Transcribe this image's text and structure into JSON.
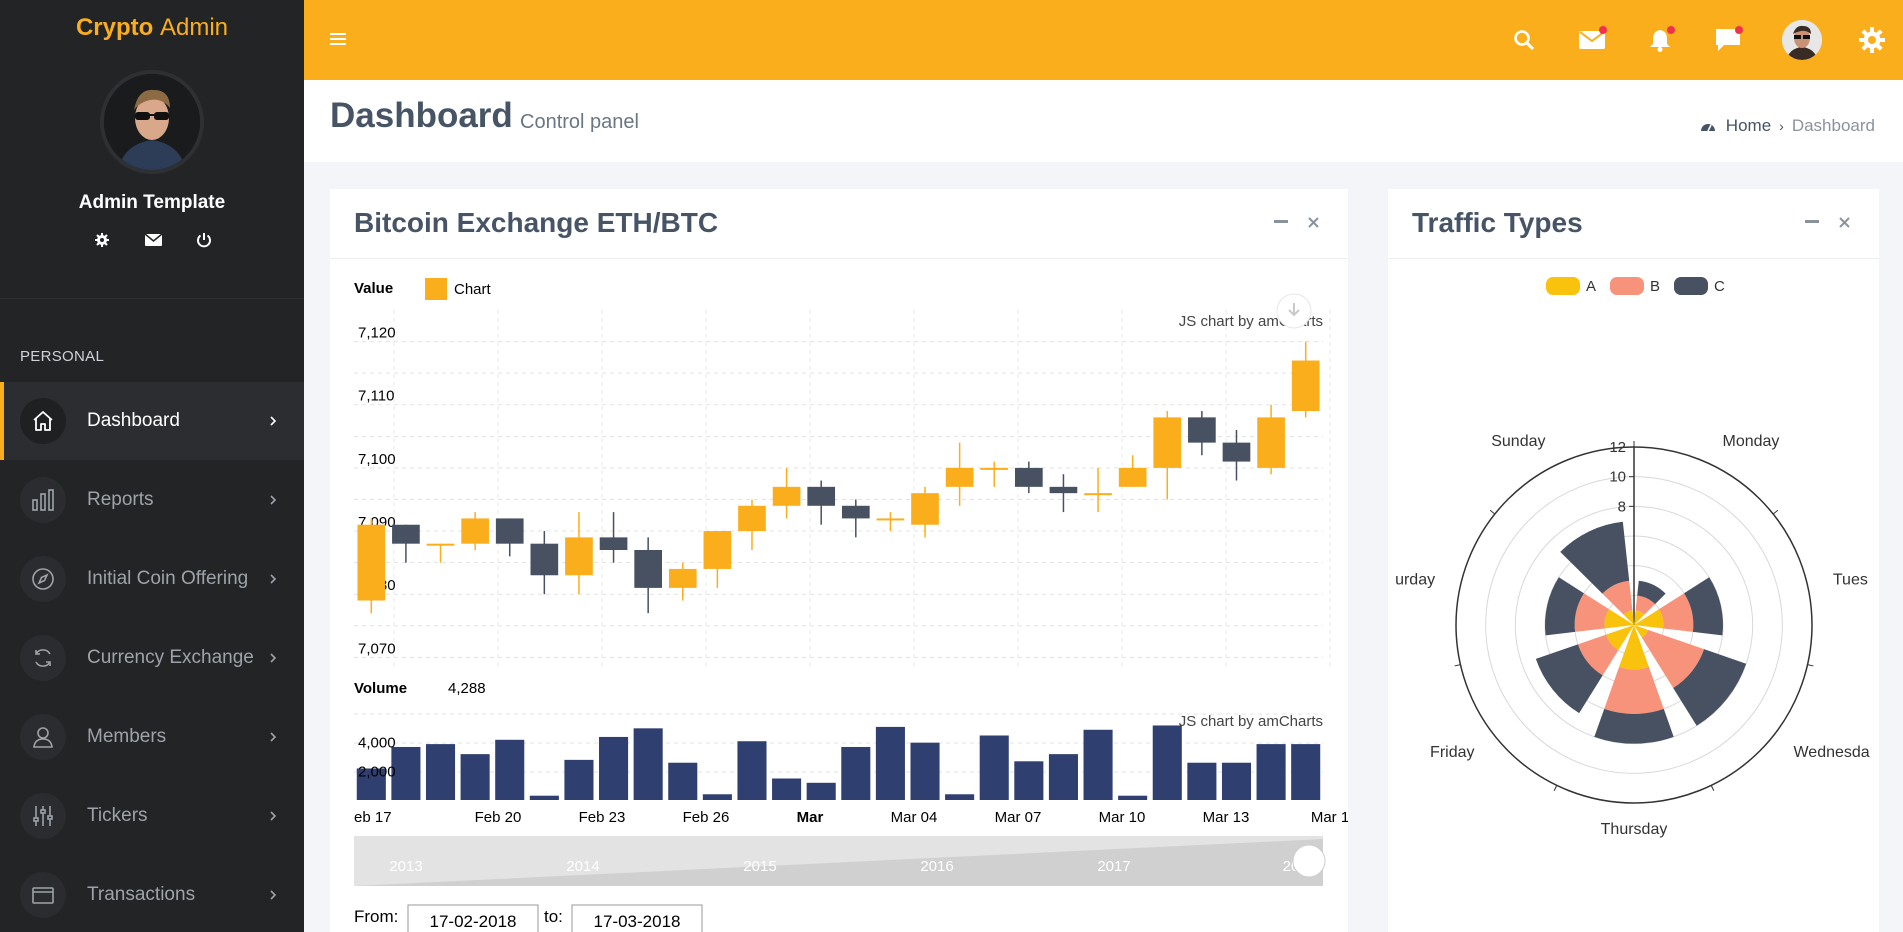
{
  "brand": {
    "bold": "Crypto",
    "thin": "Admin"
  },
  "user": {
    "name": "Admin Template"
  },
  "sidebar": {
    "section": "PERSONAL",
    "items": [
      {
        "label": "Dashboard",
        "icon": "home-icon"
      },
      {
        "label": "Reports",
        "icon": "bar-chart-icon"
      },
      {
        "label": "Initial Coin Offering",
        "icon": "compass-icon"
      },
      {
        "label": "Currency Exchange",
        "icon": "refresh-icon"
      },
      {
        "label": "Members",
        "icon": "user-icon"
      },
      {
        "label": "Tickers",
        "icon": "sliders-icon"
      },
      {
        "label": "Transactions",
        "icon": "wallet-icon"
      }
    ]
  },
  "page": {
    "title": "Dashboard",
    "subtitle": "Control panel"
  },
  "breadcrumb": {
    "home": "Home",
    "current": "Dashboard"
  },
  "colors": {
    "accent": "#fbae1c",
    "up": "#fbae1c",
    "down": "#475162",
    "volume": "#2f3f70",
    "A": "#f9c20d",
    "B": "#f8937b",
    "C": "#475162"
  },
  "exchange_box": {
    "title": "Bitcoin Exchange ETH/BTC",
    "credit": "JS chart by amCharts",
    "from_label": "From:",
    "from_value": "17-02-2018",
    "to_label": "to:",
    "to_value": "17-03-2018"
  },
  "traffic_box": {
    "title": "Traffic Types"
  },
  "chart_data": [
    {
      "type": "candlestick",
      "title": "Value",
      "legend": "Chart",
      "ylim": [
        7068,
        7125
      ],
      "y_ticks": [
        "7,070",
        "7,080",
        "7,090",
        "7,100",
        "7,110",
        "7,120"
      ],
      "candles": [
        {
          "o": 7079,
          "c": 7091,
          "h": 7092,
          "l": 7077
        },
        {
          "o": 7091,
          "c": 7088,
          "h": 7091,
          "l": 7085
        },
        {
          "o": 7088,
          "c": 7088,
          "h": 7088,
          "l": 7085
        },
        {
          "o": 7088,
          "c": 7092,
          "h": 7093,
          "l": 7087
        },
        {
          "o": 7092,
          "c": 7088,
          "h": 7092,
          "l": 7086
        },
        {
          "o": 7088,
          "c": 7083,
          "h": 7090,
          "l": 7080
        },
        {
          "o": 7083,
          "c": 7089,
          "h": 7093,
          "l": 7080
        },
        {
          "o": 7089,
          "c": 7087,
          "h": 7093,
          "l": 7085
        },
        {
          "o": 7087,
          "c": 7081,
          "h": 7089,
          "l": 7077
        },
        {
          "o": 7081,
          "c": 7084,
          "h": 7085,
          "l": 7079
        },
        {
          "o": 7084,
          "c": 7090,
          "h": 7090,
          "l": 7081
        },
        {
          "o": 7090,
          "c": 7094,
          "h": 7095,
          "l": 7087
        },
        {
          "o": 7094,
          "c": 7097,
          "h": 7100,
          "l": 7092
        },
        {
          "o": 7097,
          "c": 7094,
          "h": 7098,
          "l": 7091
        },
        {
          "o": 7094,
          "c": 7092,
          "h": 7095,
          "l": 7089
        },
        {
          "o": 7092,
          "c": 7092,
          "h": 7093,
          "l": 7090
        },
        {
          "o": 7091,
          "c": 7096,
          "h": 7097,
          "l": 7089
        },
        {
          "o": 7097,
          "c": 7100,
          "h": 7104,
          "l": 7094
        },
        {
          "o": 7100,
          "c": 7100,
          "h": 7101,
          "l": 7097
        },
        {
          "o": 7100,
          "c": 7097,
          "h": 7101,
          "l": 7096
        },
        {
          "o": 7097,
          "c": 7096,
          "h": 7099,
          "l": 7093
        },
        {
          "o": 7096,
          "c": 7096,
          "h": 7100,
          "l": 7093
        },
        {
          "o": 7097,
          "c": 7100,
          "h": 7102,
          "l": 7097
        },
        {
          "o": 7100,
          "c": 7108,
          "h": 7109,
          "l": 7095
        },
        {
          "o": 7108,
          "c": 7104,
          "h": 7109,
          "l": 7102
        },
        {
          "o": 7104,
          "c": 7101,
          "h": 7106,
          "l": 7098
        },
        {
          "o": 7100,
          "c": 7108,
          "h": 7110,
          "l": 7099
        },
        {
          "o": 7109,
          "c": 7117,
          "h": 7120,
          "l": 7108
        }
      ]
    },
    {
      "type": "bar",
      "title": "Volume",
      "current": "4,288",
      "ylim": [
        0,
        6000
      ],
      "y_ticks": [
        "2,000",
        "4,000"
      ],
      "values": [
        2200,
        3700,
        3900,
        3200,
        4200,
        300,
        2800,
        4400,
        5000,
        2600,
        400,
        4100,
        1500,
        1200,
        3700,
        5100,
        4000,
        400,
        4500,
        2700,
        3200,
        4900,
        300,
        5200,
        2600,
        2600,
        3900,
        3900
      ],
      "x_labels": [
        "eb 17",
        "Feb 20",
        "Feb 23",
        "Feb 26",
        "Mar",
        "Mar 04",
        "Mar 07",
        "Mar 10",
        "Mar 13",
        "Mar 1"
      ],
      "scroll_years": [
        "2013",
        "2014",
        "2015",
        "2016",
        "2017",
        "20"
      ]
    },
    {
      "type": "polar-bar",
      "stacked": true,
      "series": [
        {
          "name": "A",
          "values": [
            1,
            2,
            1,
            3,
            2,
            2,
            1
          ]
        },
        {
          "name": "B",
          "values": [
            1,
            2,
            4,
            3,
            2,
            2,
            2
          ]
        },
        {
          "name": "C",
          "values": [
            1,
            2,
            3,
            2,
            3,
            2,
            4
          ]
        }
      ],
      "categories": [
        "Monday",
        "Tuesday",
        "Wednesday",
        "Thursday",
        "Friday",
        "Saturday",
        "Sunday"
      ],
      "category_labels": [
        "Monday",
        "Tues",
        "Wednesda",
        "Thursday",
        "Friday",
        "urday",
        "Sunday"
      ],
      "r_ticks": [
        "8",
        "10",
        "12"
      ],
      "rlim": [
        0,
        12
      ]
    }
  ]
}
